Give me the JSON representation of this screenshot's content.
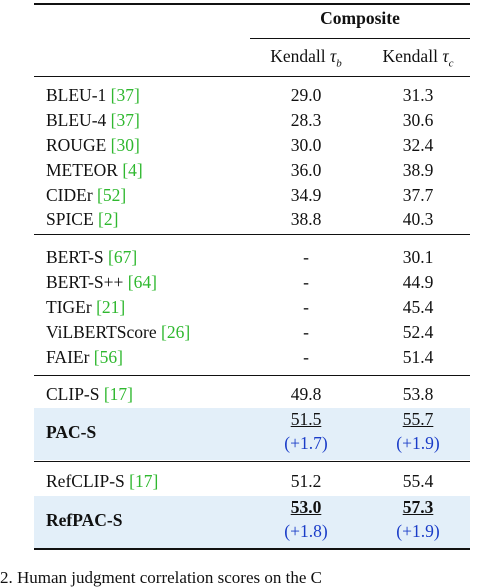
{
  "header": {
    "group": "Composite",
    "col1": {
      "prefix": "Kendall ",
      "symbol": "τ",
      "sub": "b"
    },
    "col2": {
      "prefix": "Kendall ",
      "symbol": "τ",
      "sub": "c"
    }
  },
  "rows": [
    {
      "name": "BLEU-1",
      "cite": "[37]",
      "v1": "29.0",
      "v2": "31.3"
    },
    {
      "name": "BLEU-4",
      "cite": "[37]",
      "v1": "28.3",
      "v2": "30.6"
    },
    {
      "name": "ROUGE",
      "cite": "[30]",
      "v1": "30.0",
      "v2": "32.4"
    },
    {
      "name": "METEOR",
      "cite": "[4]",
      "v1": "36.0",
      "v2": "38.9"
    },
    {
      "name": "CIDEr",
      "cite": "[52]",
      "v1": "34.9",
      "v2": "37.7"
    },
    {
      "name": "SPICE",
      "cite": "[2]",
      "v1": "38.8",
      "v2": "40.3"
    },
    {
      "name": "BERT-S",
      "cite": "[67]",
      "v1": "-",
      "v2": "30.1"
    },
    {
      "name": "BERT-S++",
      "cite": "[64]",
      "v1": "-",
      "v2": "44.9"
    },
    {
      "name": "TIGEr",
      "cite": "[21]",
      "v1": "-",
      "v2": "45.4"
    },
    {
      "name": "ViLBERTScore",
      "cite": "[26]",
      "v1": "-",
      "v2": "52.4"
    },
    {
      "name": "FAIEr",
      "cite": "[56]",
      "v1": "-",
      "v2": "51.4"
    },
    {
      "name": "CLIP-S",
      "cite": "[17]",
      "v1": "49.8",
      "v2": "53.8"
    },
    {
      "name": "PAC-S",
      "cite": "",
      "v1": "51.5",
      "v2": "55.7",
      "d1": "(+1.7)",
      "d2": "(+1.9)"
    },
    {
      "name": "RefCLIP-S",
      "cite": "[17]",
      "v1": "51.2",
      "v2": "55.4"
    },
    {
      "name": "RefPAC-S",
      "cite": "",
      "v1": "53.0",
      "v2": "57.3",
      "d1": "(+1.8)",
      "d2": "(+1.9)"
    }
  ],
  "caption": "2.  Human judgment correlation scores on the C"
}
